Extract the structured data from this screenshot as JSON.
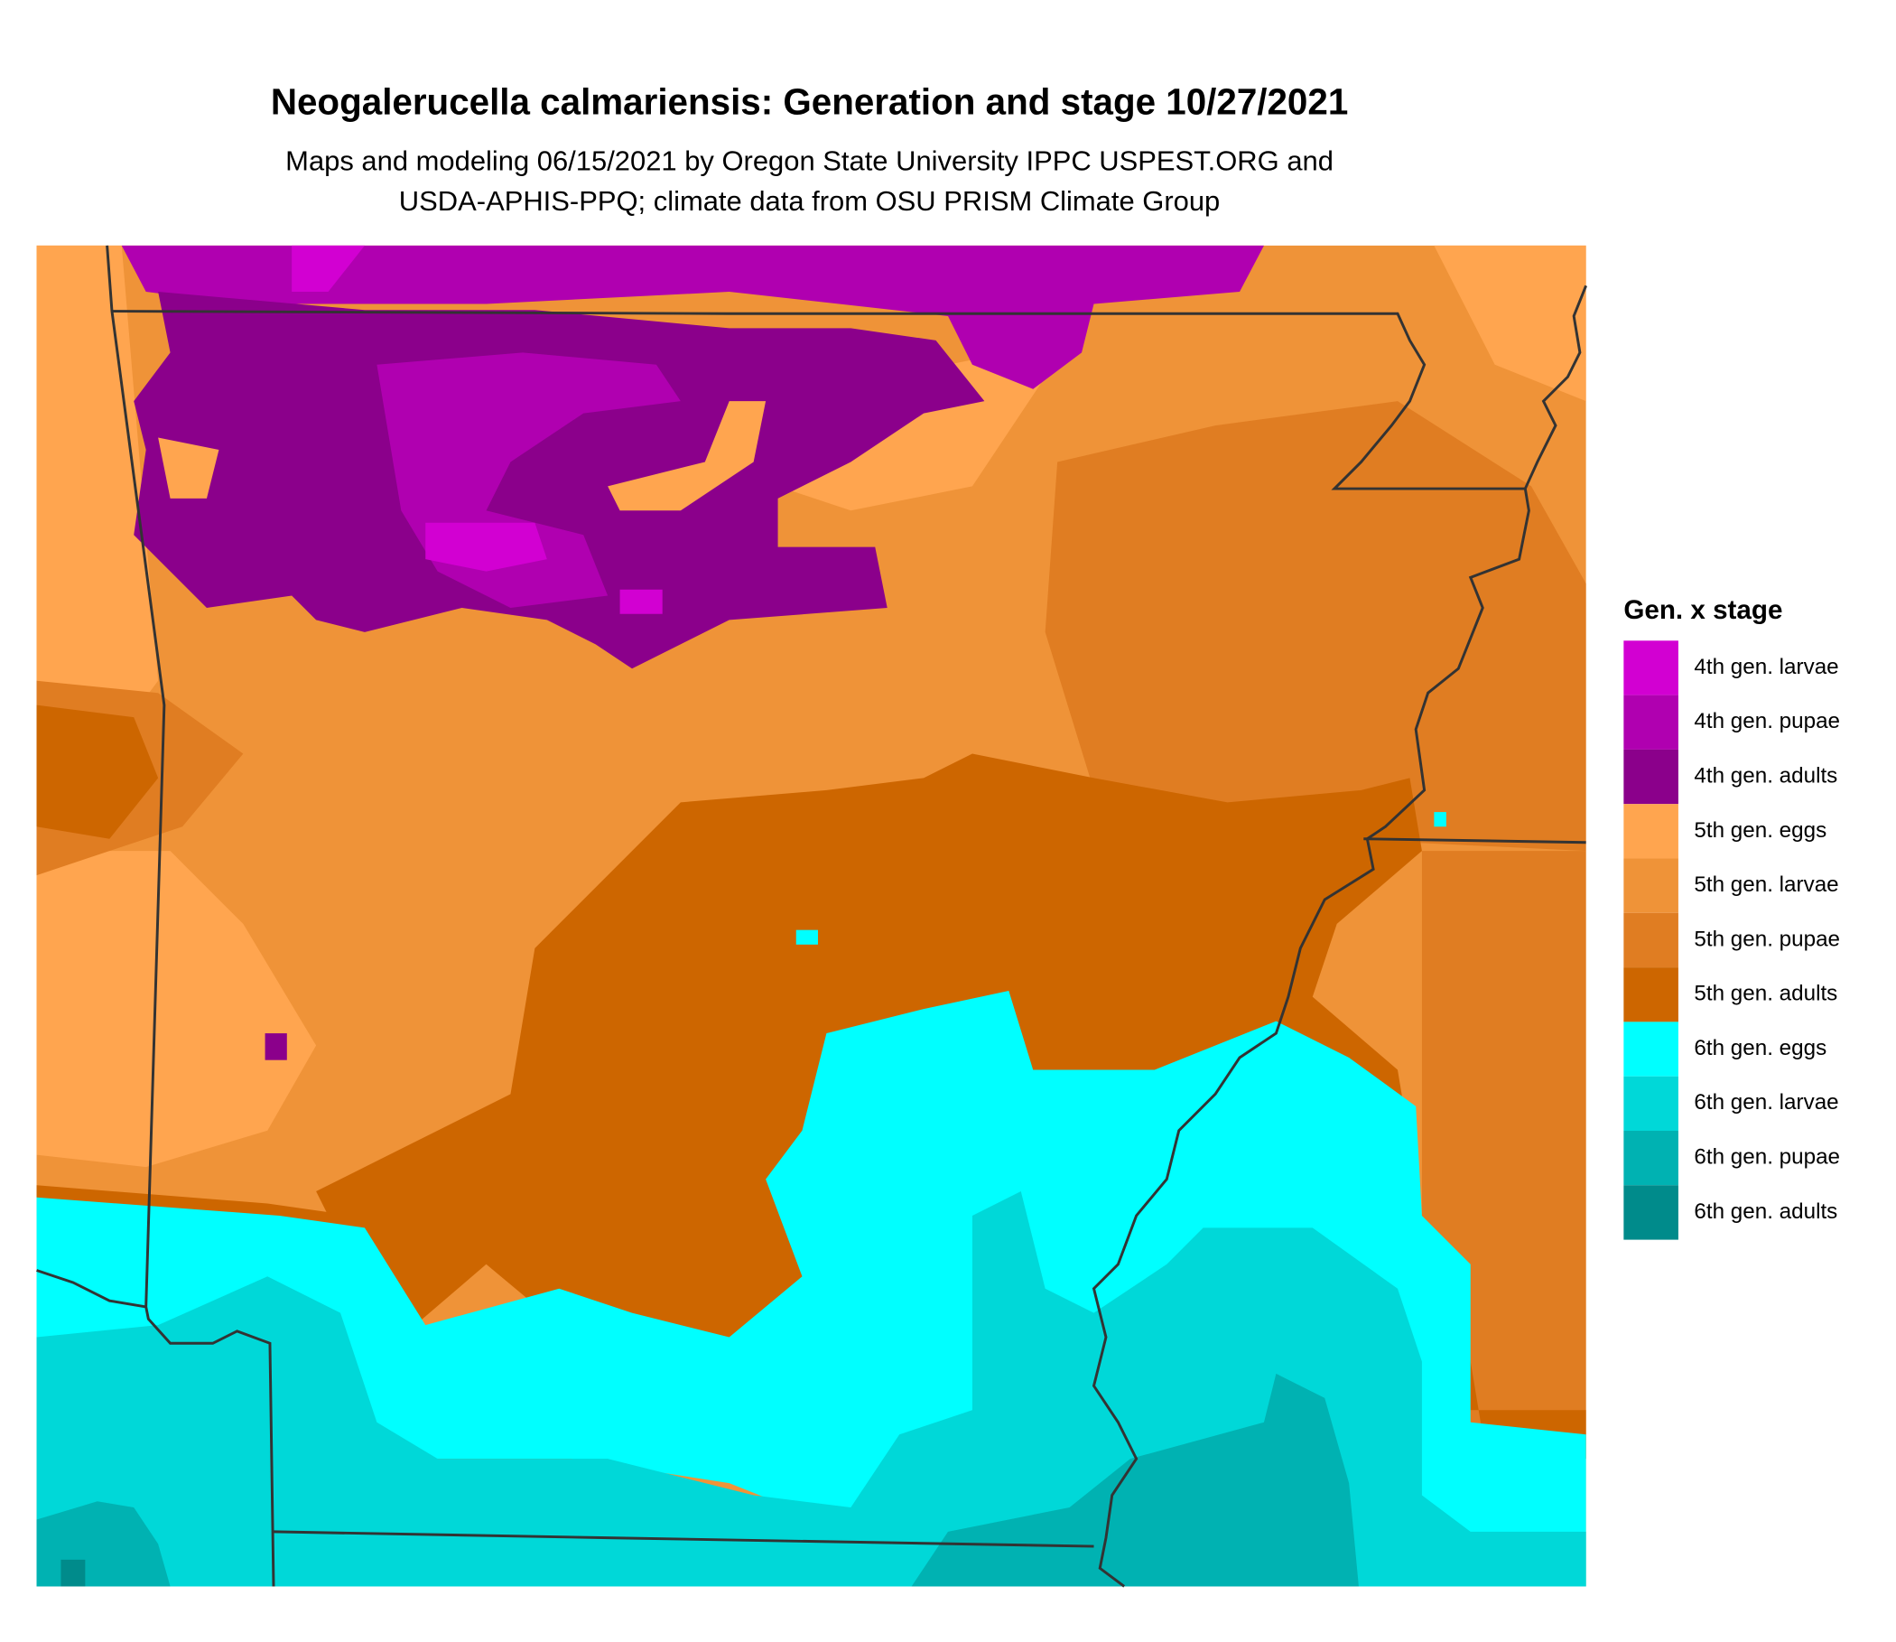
{
  "title": "Neogalerucella calmariensis: Generation and stage 10/27/2021",
  "subtitle": [
    "Maps and modeling 06/15/2021 by Oregon State University IPPC USPEST.ORG and",
    "USDA-APHIS-PPQ; climate data from OSU PRISM Climate Group"
  ],
  "legend": {
    "title": "Gen. x stage",
    "items": [
      {
        "label": "4th gen. larvae",
        "color": "#d200d2"
      },
      {
        "label": "4th gen. pupae",
        "color": "#b000b0"
      },
      {
        "label": "4th gen. adults",
        "color": "#8b008b"
      },
      {
        "label": "5th gen. eggs",
        "color": "#ffa54f"
      },
      {
        "label": "5th gen. larvae",
        "color": "#ef9338"
      },
      {
        "label": "5th gen. pupae",
        "color": "#e07d22"
      },
      {
        "label": "5th gen. adults",
        "color": "#cd6600"
      },
      {
        "label": "6th gen. eggs",
        "color": "#00ffff"
      },
      {
        "label": "6th gen. larvae",
        "color": "#00d8d8"
      },
      {
        "label": "6th gen. pupae",
        "color": "#00b2b2"
      },
      {
        "label": "6th gen. adults",
        "color": "#008b8b"
      }
    ]
  }
}
